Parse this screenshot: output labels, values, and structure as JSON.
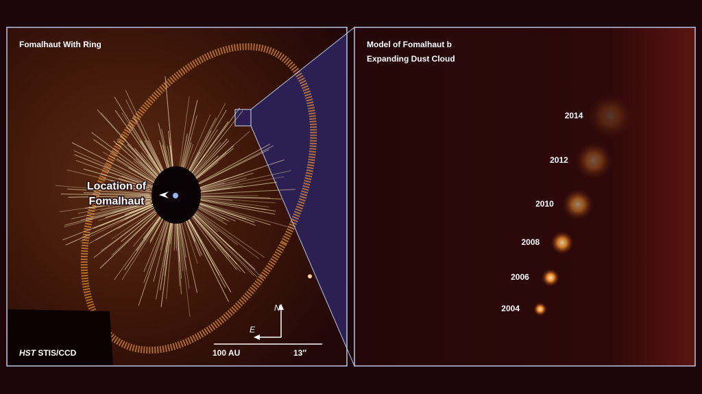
{
  "left_panel": {
    "title": "Fomalhaut With Ring",
    "star_label": [
      "Location of",
      "Fomalhaut"
    ],
    "compass": {
      "north": "N",
      "east": "E"
    },
    "instrument": {
      "telescope": "HST",
      "camera": "STIS/CCD"
    },
    "scale": {
      "distance": "100 AU",
      "angle": "13″"
    }
  },
  "right_panel": {
    "title": [
      "Model of Fomalhaut b",
      "Expanding Dust Cloud"
    ],
    "years": [
      "2004",
      "2006",
      "2008",
      "2010",
      "2012",
      "2014"
    ]
  }
}
